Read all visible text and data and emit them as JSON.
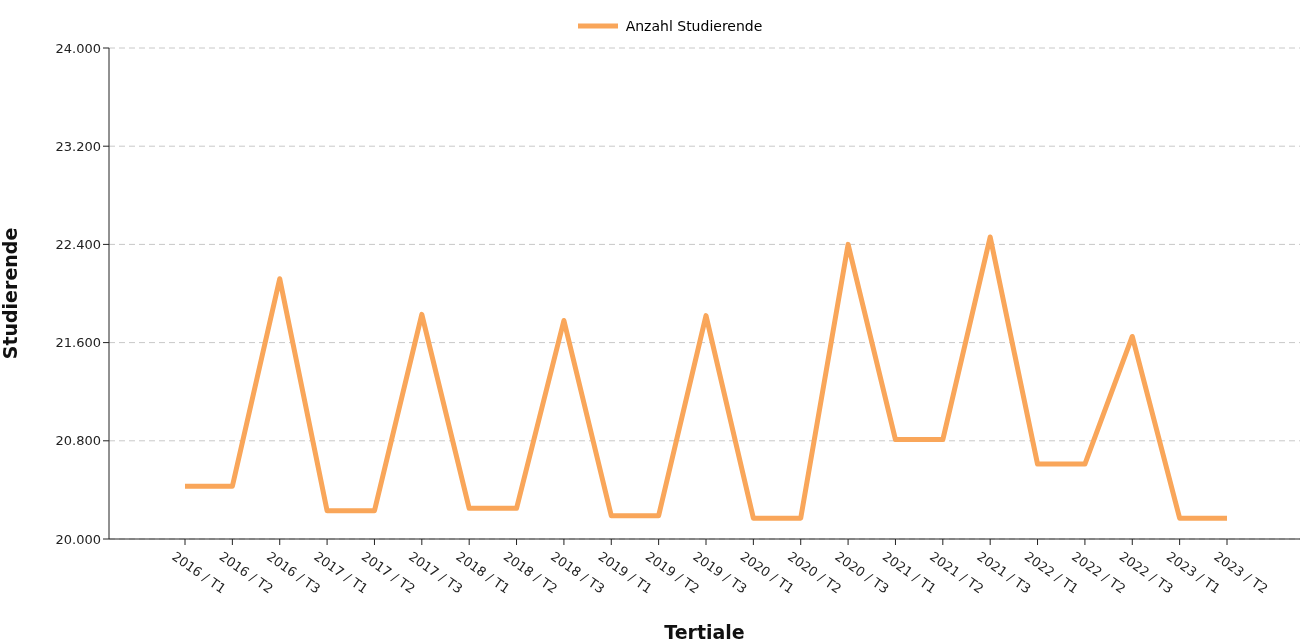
{
  "chart_data": {
    "type": "line",
    "xlabel": "Tertiale",
    "ylabel": "Studierende",
    "categories": [
      "2016 / T1",
      "2016 / T2",
      "2016 / T3",
      "2017 / T1",
      "2017 / T2",
      "2017 / T3",
      "2018 / T1",
      "2018 / T2",
      "2018 / T3",
      "2019 / T1",
      "2019 / T2",
      "2019 / T3",
      "2020 / T1",
      "2020 / T2",
      "2020 / T3",
      "2021 / T1",
      "2021 / T2",
      "2021 / T3",
      "2022 / T1",
      "2022 / T2",
      "2022 / T3",
      "2023 / T1",
      "2023 / T2"
    ],
    "series": [
      {
        "name": "Anzahl Studierende",
        "color": "#f9a65a",
        "values": [
          20430,
          20430,
          22120,
          20230,
          20230,
          21830,
          20250,
          20250,
          21780,
          20190,
          20190,
          21820,
          20170,
          20170,
          22400,
          20810,
          20810,
          22460,
          20610,
          20610,
          21650,
          20170,
          20170
        ]
      }
    ],
    "ylim": [
      20000,
      24000
    ],
    "yticks": [
      {
        "value": 20000,
        "label": "20.000"
      },
      {
        "value": 20800,
        "label": "20.800"
      },
      {
        "value": 21600,
        "label": "21.600"
      },
      {
        "value": 22400,
        "label": "22.400"
      },
      {
        "value": 23200,
        "label": "23.200"
      },
      {
        "value": 24000,
        "label": "24.000"
      }
    ],
    "grid": "y",
    "legend": "top",
    "marker": "none",
    "line_style": "solid"
  }
}
